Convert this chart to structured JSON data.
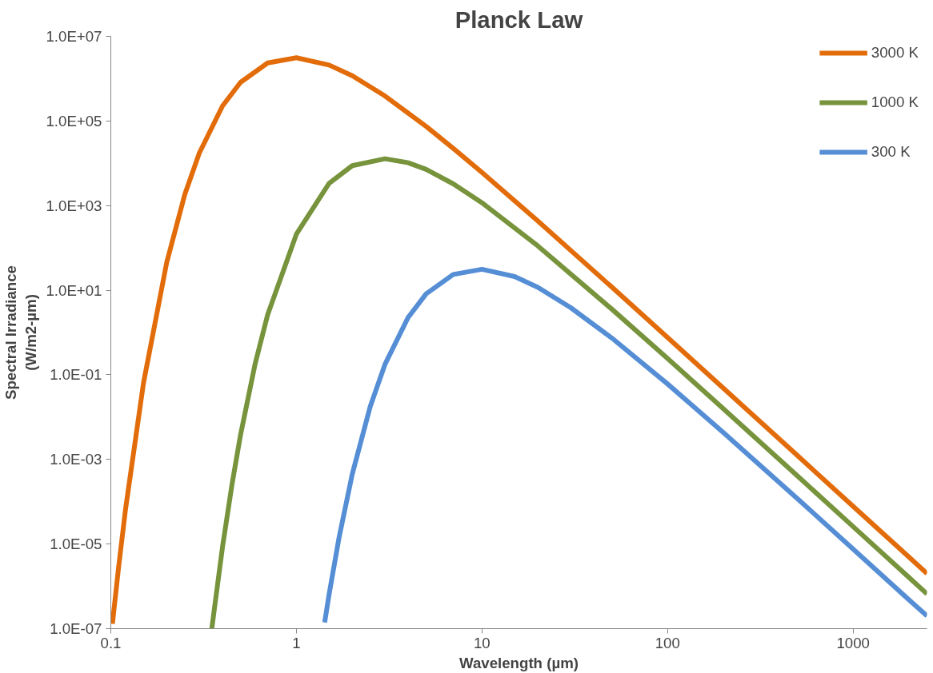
{
  "chart_data": {
    "type": "line",
    "title": "Planck Law",
    "xlabel": "Wavelength (µm)",
    "ylabel": "Spectral Irradiance\n(W/m2-µm)",
    "log": "xy",
    "grid": false,
    "legend": "top right",
    "marker": "none",
    "line_style": "solid",
    "xlim": [
      0.1,
      2500
    ],
    "ylim": [
      1e-07,
      10000000.0
    ],
    "xticks": [
      0.1,
      1,
      10,
      100,
      1000
    ],
    "yticks": [
      {
        "value": 1e-07,
        "label": "1.0E-07"
      },
      {
        "value": 1e-05,
        "label": "1.0E-05"
      },
      {
        "value": 0.001,
        "label": "1.0E-03"
      },
      {
        "value": 0.1,
        "label": "1.0E-01"
      },
      {
        "value": 10,
        "label": "1.0E+01"
      },
      {
        "value": 1000,
        "label": "1.0E+03"
      },
      {
        "value": 100000,
        "label": "1.0E+05"
      },
      {
        "value": 10000000,
        "label": "1.0E+07"
      }
    ],
    "series": [
      {
        "name": "3000 K",
        "color": "#e36c0a",
        "x": [
          0.102,
          0.11,
          0.12,
          0.15,
          0.2,
          0.25,
          0.3,
          0.4,
          0.5,
          0.7,
          1,
          1.5,
          2,
          3,
          5,
          7,
          10,
          20,
          50,
          100,
          200,
          500,
          1000,
          2000,
          2500
        ],
        "values": [
          1.3e-07,
          2.7e-06,
          6.6e-05,
          0.064,
          45,
          1790,
          17600,
          227000,
          820000,
          2360000,
          3120000,
          2100000,
          1170000,
          390000,
          74400,
          22600,
          6080,
          431,
          11.9,
          0.761,
          0.0482,
          0.00124,
          7.8e-05,
          4.9e-06,
          2e-06
        ]
      },
      {
        "name": "1000 K",
        "color": "#77933c",
        "x": [
          0.35,
          0.4,
          0.45,
          0.5,
          0.6,
          0.7,
          1,
          1.5,
          2,
          3,
          4,
          5,
          7,
          10,
          20,
          50,
          100,
          200,
          500,
          1000,
          2000,
          2500
        ],
        "values": [
          1e-07,
          8.7e-06,
          0.00026,
          0.0038,
          0.186,
          2.64,
          211,
          3370,
          8790,
          12800,
          10300,
          7170,
          3270,
          1164,
          111,
          3.59,
          0.242,
          0.0157,
          0.00041,
          2.58e-05,
          1.62e-06,
          6.6e-07
        ]
      },
      {
        "name": "300 K",
        "color": "#558ed5",
        "x": [
          1.42,
          1.5,
          1.7,
          2,
          2.5,
          3,
          4,
          5,
          7,
          10,
          15,
          20,
          30,
          50,
          100,
          200,
          500,
          1000,
          2000,
          2500
        ],
        "values": [
          1.4e-07,
          6.4e-07,
          1.47e-05,
          0.00045,
          0.0179,
          0.176,
          2.27,
          8.19,
          23.6,
          31.2,
          21.0,
          11.7,
          3.9,
          0.744,
          0.0608,
          0.00431,
          0.000119,
          7.6e-06,
          4.8e-07,
          2e-07
        ]
      }
    ]
  }
}
